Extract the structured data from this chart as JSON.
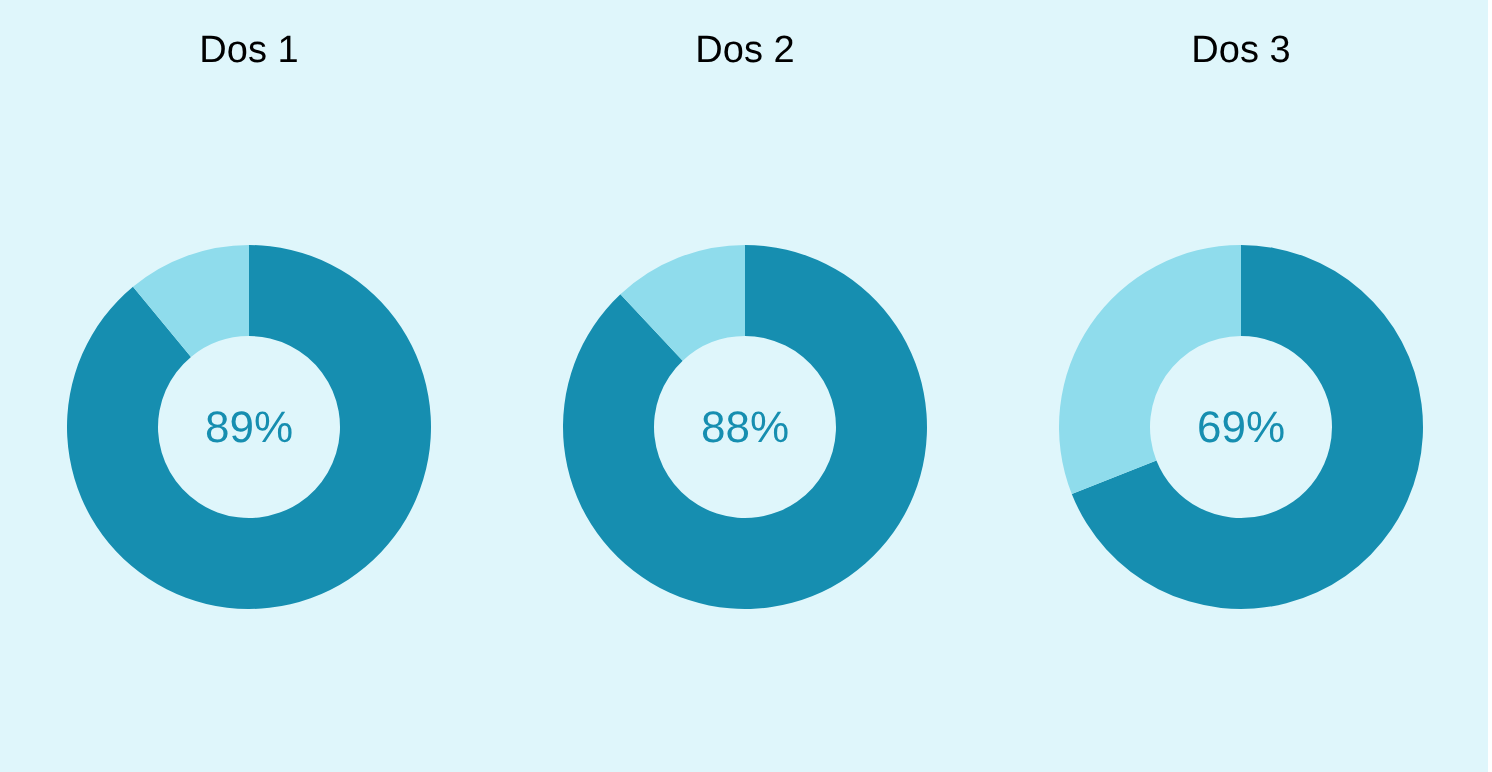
{
  "chart_data": [
    {
      "type": "donut",
      "title": "Dos 1",
      "categories": [
        null,
        null
      ],
      "values": [
        89,
        11
      ],
      "colors": [
        "#168eb0",
        "#8fdcec"
      ],
      "annotations": [
        "89%"
      ]
    },
    {
      "type": "donut",
      "title": "Dos 2",
      "categories": [
        null,
        null
      ],
      "values": [
        88,
        12
      ],
      "colors": [
        "#168eb0",
        "#8fdcec"
      ],
      "annotations": [
        "88%"
      ]
    },
    {
      "type": "donut",
      "title": "Dos 3",
      "categories": [
        null,
        null
      ],
      "values": [
        69,
        31
      ],
      "colors": [
        "#168eb0",
        "#8fdcec"
      ],
      "annotations": [
        "69%"
      ]
    }
  ]
}
